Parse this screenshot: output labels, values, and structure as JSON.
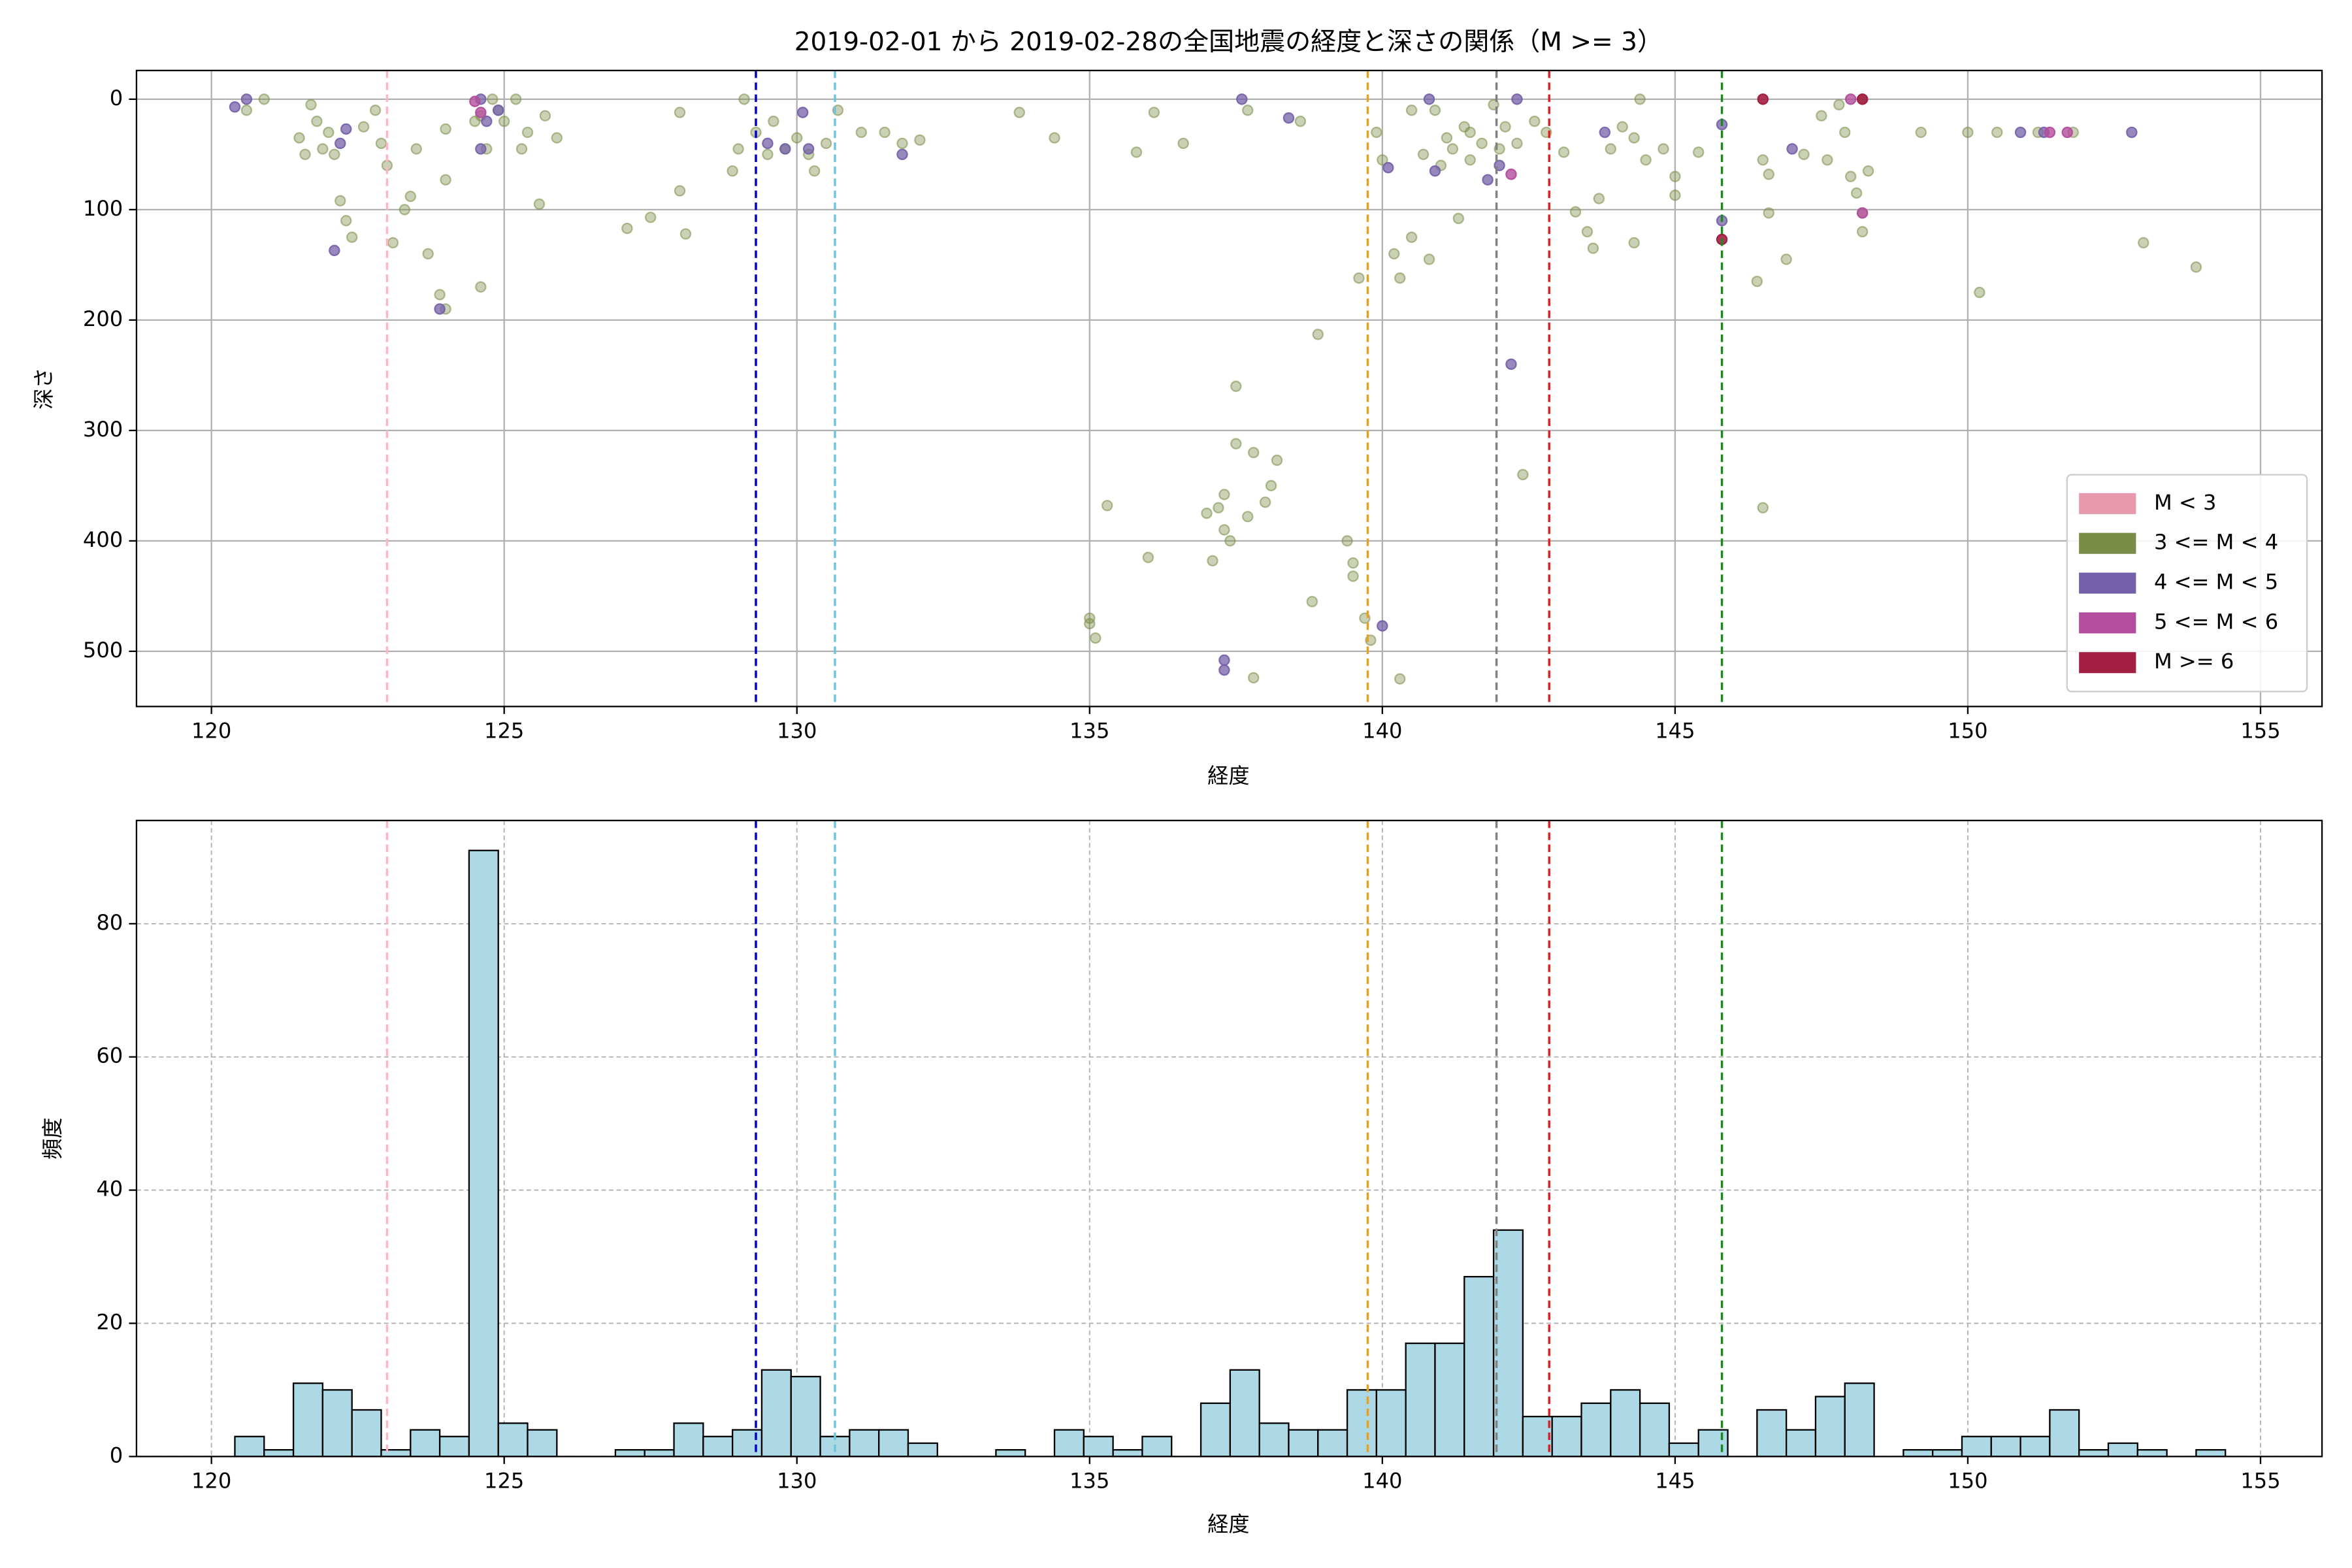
{
  "chart_data": [
    {
      "type": "scatter",
      "title": "2019-02-01 から 2019-02-28の全国地震の経度と深さの関係（M >= 3）",
      "xlabel": "経度",
      "ylabel": "深さ",
      "xlim": [
        118.72,
        156.05
      ],
      "xticks": [
        120,
        125,
        130,
        135,
        140,
        145,
        150,
        155
      ],
      "ylim": [
        550,
        -26
      ],
      "yticks": [
        0,
        100,
        200,
        300,
        400,
        500
      ],
      "grid": true,
      "grid_style": "solid",
      "legend": "lower right",
      "vlines": [
        {
          "x": 123.0,
          "color": "#ffb6c1"
        },
        {
          "x": 129.3,
          "color": "#0000cc"
        },
        {
          "x": 130.65,
          "color": "#6ec6dc"
        },
        {
          "x": 139.75,
          "color": "#e8a020"
        },
        {
          "x": 141.95,
          "color": "#808080"
        },
        {
          "x": 142.85,
          "color": "#e02020"
        },
        {
          "x": 145.8,
          "color": "#1a8a1a"
        }
      ],
      "series": [
        {
          "name": "M < 3",
          "color": "#e79aad",
          "opacity": 0.5,
          "x": [],
          "values": []
        },
        {
          "name": "3 <= M < 4",
          "color": "#7a8c47",
          "opacity": 0.4,
          "x": [
            120.6,
            120.9,
            121.5,
            121.6,
            121.7,
            121.8,
            121.9,
            122.0,
            122.1,
            122.2,
            122.3,
            122.4,
            122.6,
            122.8,
            122.9,
            123.0,
            123.1,
            123.3,
            123.4,
            123.5,
            123.7,
            124.0,
            124.0,
            123.9,
            124.0,
            124.6,
            124.5,
            124.6,
            124.7,
            124.8,
            124.9,
            125.0,
            125.2,
            125.3,
            125.4,
            125.6,
            125.7,
            125.9,
            127.1,
            127.5,
            128.0,
            128.1,
            128.0,
            128.9,
            129.0,
            129.1,
            129.3,
            129.5,
            129.6,
            129.8,
            130.0,
            130.2,
            130.3,
            130.5,
            130.7,
            131.1,
            131.5,
            131.8,
            132.1,
            133.8,
            134.4,
            135.0,
            135.0,
            135.1,
            135.3,
            135.8,
            136.0,
            136.1,
            136.6,
            137.0,
            137.1,
            137.2,
            137.3,
            137.3,
            137.4,
            137.5,
            137.5,
            137.7,
            137.7,
            137.8,
            137.8,
            138.0,
            138.1,
            138.2,
            138.6,
            138.8,
            138.9,
            139.4,
            139.5,
            139.6,
            139.7,
            139.5,
            139.8,
            139.9,
            140.0,
            140.2,
            140.3,
            140.5,
            140.3,
            140.5,
            140.8,
            140.7,
            140.9,
            141.1,
            141.0,
            141.2,
            141.3,
            141.4,
            141.5,
            141.5,
            141.7,
            141.9,
            142.0,
            142.1,
            142.3,
            142.4,
            142.6,
            142.8,
            143.1,
            143.3,
            143.5,
            143.6,
            143.7,
            143.9,
            144.1,
            144.3,
            144.4,
            144.3,
            144.5,
            144.8,
            145.0,
            145.0,
            145.4,
            146.4,
            146.5,
            146.5,
            146.6,
            146.6,
            146.9,
            147.2,
            147.5,
            147.8,
            147.6,
            147.9,
            148.0,
            148.1,
            148.2,
            148.2,
            148.3,
            148.2,
            149.2,
            150.0,
            150.2,
            150.5,
            151.2,
            151.8,
            153.0,
            153.9
          ],
          "values": [
            10,
            0,
            35,
            50,
            5,
            20,
            45,
            30,
            50,
            92,
            110,
            125,
            25,
            10,
            40,
            60,
            130,
            100,
            88,
            45,
            140,
            27,
            73,
            177,
            190,
            170,
            20,
            15,
            45,
            0,
            10,
            20,
            0,
            45,
            30,
            95,
            15,
            35,
            117,
            107,
            83,
            122,
            12,
            65,
            45,
            0,
            30,
            50,
            20,
            45,
            35,
            50,
            65,
            40,
            10,
            30,
            30,
            40,
            37,
            12,
            35,
            475,
            470,
            488,
            368,
            48,
            415,
            12,
            40,
            375,
            418,
            370,
            390,
            358,
            400,
            312,
            260,
            10,
            378,
            524,
            320,
            365,
            350,
            327,
            20,
            455,
            213,
            400,
            432,
            162,
            470,
            420,
            490,
            30,
            55,
            140,
            162,
            10,
            525,
            125,
            145,
            50,
            10,
            35,
            60,
            45,
            108,
            25,
            55,
            30,
            40,
            5,
            45,
            25,
            40,
            340,
            20,
            30,
            48,
            102,
            120,
            135,
            90,
            45,
            25,
            35,
            0,
            130,
            55,
            45,
            70,
            87,
            48,
            165,
            370,
            55,
            68,
            103,
            145,
            50,
            15,
            5,
            55,
            30,
            70,
            85,
            103,
            0,
            65,
            120,
            30,
            30,
            175,
            30,
            30,
            30,
            130,
            152
          ]
        },
        {
          "name": "4 <= M < 5",
          "color": "#7460a8",
          "opacity": 0.75,
          "x": [
            120.4,
            120.6,
            122.1,
            122.3,
            122.2,
            123.9,
            124.6,
            124.6,
            124.9,
            124.7,
            129.5,
            129.8,
            130.1,
            130.2,
            131.8,
            137.6,
            137.3,
            137.3,
            138.4,
            140.0,
            140.1,
            140.8,
            140.9,
            141.8,
            142.0,
            142.2,
            142.3,
            143.8,
            145.8,
            145.8,
            147.0,
            150.9,
            151.3,
            152.8
          ],
          "values": [
            7,
            0,
            137,
            27,
            40,
            190,
            45,
            0,
            10,
            20,
            40,
            45,
            12,
            45,
            50,
            0,
            508,
            517,
            17,
            477,
            62,
            0,
            65,
            73,
            60,
            240,
            0,
            30,
            23,
            110,
            45,
            30,
            30,
            30
          ]
        },
        {
          "name": "5 <= M < 6",
          "color": "#b44d9c",
          "opacity": 0.8,
          "x": [
            124.5,
            124.6,
            142.2,
            148.2,
            151.4,
            151.7,
            148.0
          ],
          "values": [
            2,
            12,
            68,
            103,
            30,
            30,
            0
          ]
        },
        {
          "name": "M >= 6",
          "color": "#a31e43",
          "opacity": 0.9,
          "x": [
            145.8,
            146.5,
            148.2
          ],
          "values": [
            127,
            0,
            0
          ]
        }
      ]
    },
    {
      "type": "histogram",
      "xlabel": "経度",
      "ylabel": "頻度",
      "xlim": [
        118.72,
        156.05
      ],
      "xticks": [
        120,
        125,
        130,
        135,
        140,
        145,
        150,
        155
      ],
      "ylim": [
        0,
        95.5
      ],
      "yticks": [
        0,
        20,
        40,
        60,
        80
      ],
      "grid": true,
      "grid_style": "dashed",
      "color": "#add8e6",
      "edgecolor": "#000000",
      "vlines": [
        {
          "x": 123.0,
          "color": "#ffb6c1"
        },
        {
          "x": 129.3,
          "color": "#0000cc"
        },
        {
          "x": 130.65,
          "color": "#6ec6dc"
        },
        {
          "x": 139.75,
          "color": "#e8a020"
        },
        {
          "x": 141.95,
          "color": "#808080"
        },
        {
          "x": 142.85,
          "color": "#e02020"
        },
        {
          "x": 145.8,
          "color": "#1a8a1a"
        }
      ],
      "bins": [
        120.4,
        120.9,
        121.4,
        121.9,
        122.4,
        122.9,
        123.4,
        123.9,
        124.4,
        124.9,
        125.4,
        125.9,
        126.4,
        126.9,
        127.4,
        127.9,
        128.4,
        128.9,
        129.4,
        129.9,
        130.4,
        130.9,
        131.4,
        131.9,
        132.4,
        132.9,
        133.4,
        133.9,
        134.4,
        134.9,
        135.4,
        135.9,
        136.4,
        136.9,
        137.4,
        137.9,
        138.4,
        138.9,
        139.4,
        139.9,
        140.4,
        140.9,
        141.4,
        141.9,
        142.4,
        142.9,
        143.4,
        143.9,
        144.4,
        144.9,
        145.4,
        145.9,
        146.4,
        146.9,
        147.4,
        147.9,
        148.4,
        148.9,
        149.4,
        149.9,
        150.4,
        150.9,
        151.4,
        151.9,
        152.4,
        152.9,
        153.4,
        153.9,
        154.4
      ],
      "values": [
        3,
        1,
        11,
        10,
        7,
        1,
        4,
        3,
        91,
        5,
        4,
        0,
        0,
        1,
        1,
        5,
        3,
        4,
        13,
        12,
        3,
        4,
        4,
        2,
        0,
        0,
        1,
        0,
        4,
        3,
        1,
        3,
        0,
        8,
        13,
        5,
        4,
        4,
        10,
        10,
        17,
        17,
        27,
        34,
        6,
        6,
        8,
        10,
        8,
        2,
        4,
        0,
        7,
        4,
        9,
        11,
        0,
        1,
        1,
        3,
        3,
        3,
        7,
        1,
        2,
        1,
        0,
        1
      ]
    }
  ]
}
